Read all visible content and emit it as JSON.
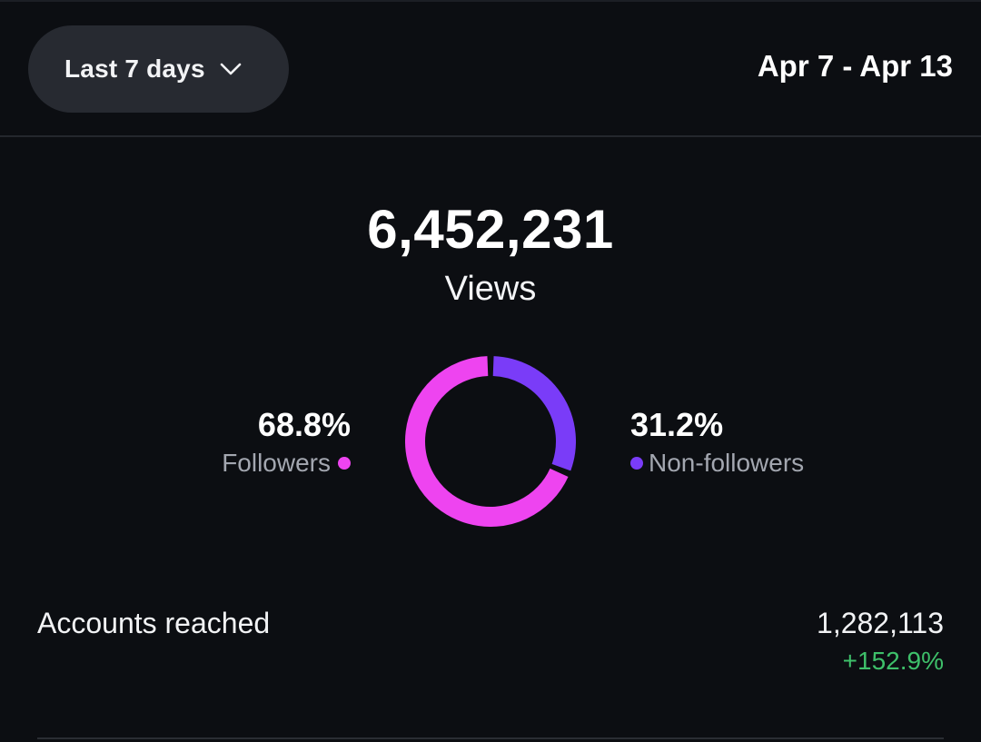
{
  "header": {
    "range_selector": "Last 7 days",
    "date_range": "Apr 7 - Apr 13"
  },
  "summary": {
    "total_value": "6,452,231",
    "total_label": "Views"
  },
  "breakdown": {
    "followers": {
      "percent": "68.8%",
      "label": "Followers",
      "fraction": 0.688,
      "color": "#ee44f0"
    },
    "non_followers": {
      "percent": "31.2%",
      "label": "Non-followers",
      "fraction": 0.312,
      "color": "#7a3cf8"
    }
  },
  "metrics": [
    {
      "label": "Accounts reached",
      "value": "1,282,113",
      "change": "+152.9%"
    }
  ],
  "colors": {
    "background": "#0c0e12",
    "positive": "#3ec06a"
  }
}
